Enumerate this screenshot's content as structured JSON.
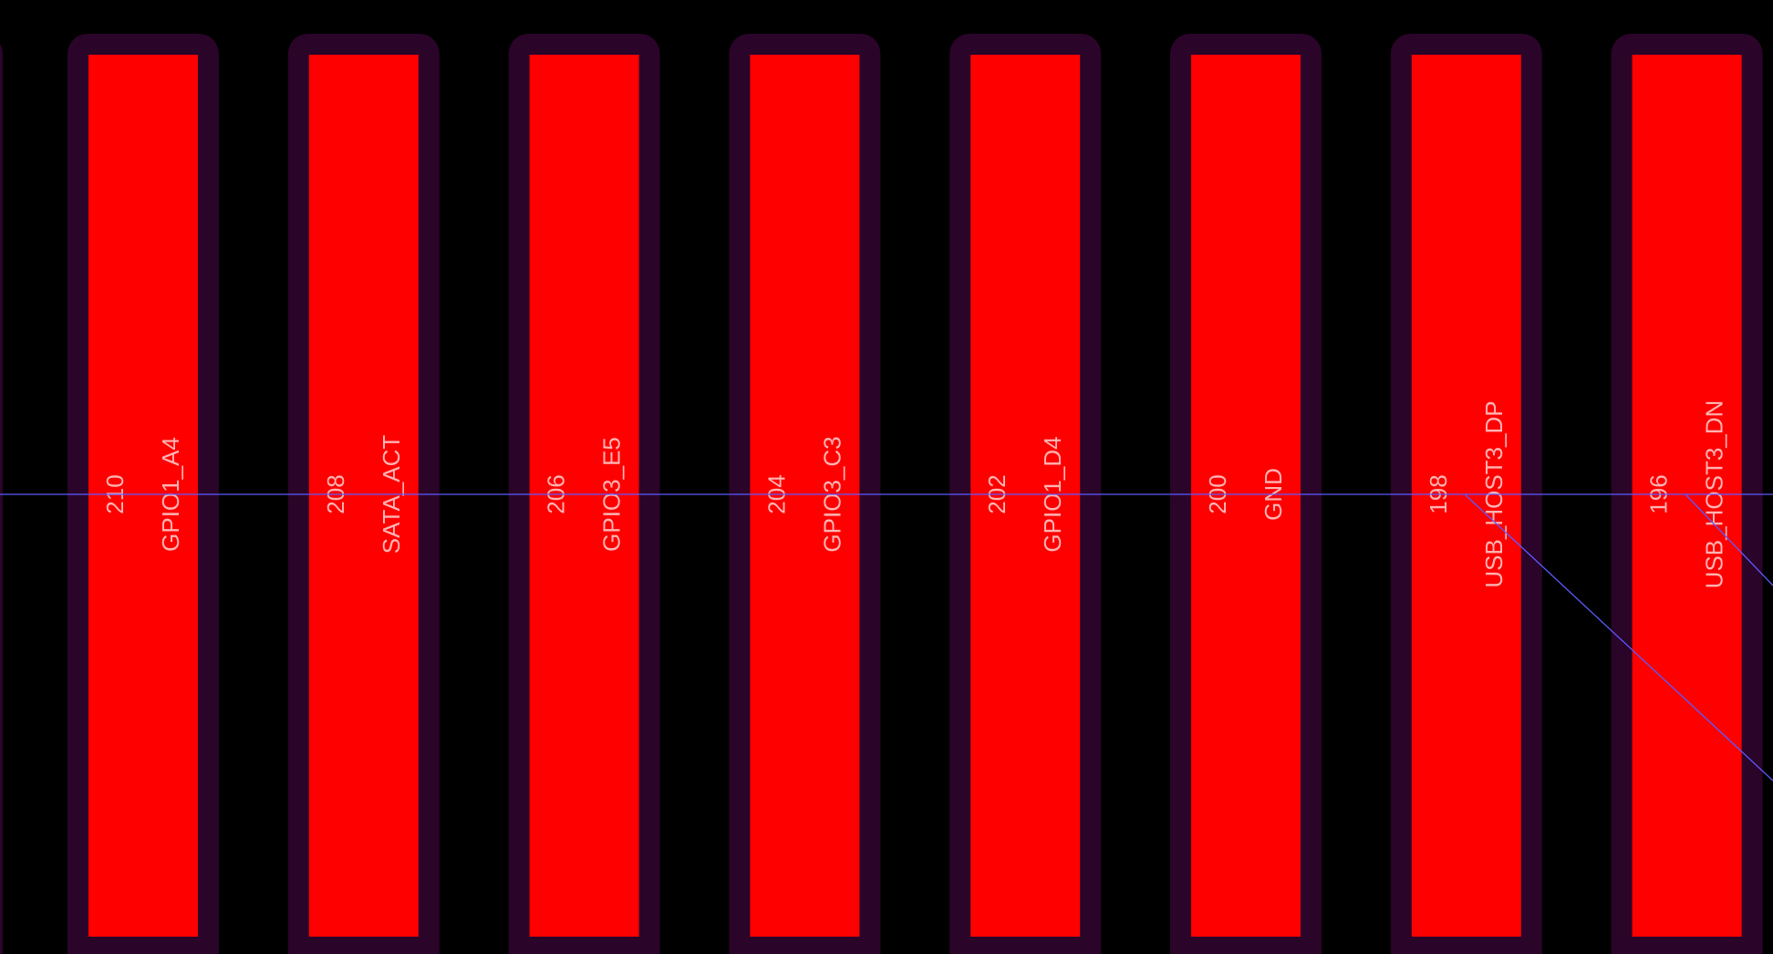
{
  "colors": {
    "background": "#000000",
    "pad_copper": "#ff0000",
    "pad_clearance": "#2a0429",
    "label_text": "#ffb4b4",
    "ratsnest": "#5a5aff"
  },
  "pads": [
    {
      "number": "210",
      "net": "GPIO1_A4"
    },
    {
      "number": "208",
      "net": "SATA_ACT"
    },
    {
      "number": "206",
      "net": "GPIO3_E5"
    },
    {
      "number": "204",
      "net": "GPIO3_C3"
    },
    {
      "number": "202",
      "net": "GPIO1_D4"
    },
    {
      "number": "200",
      "net": "GND"
    },
    {
      "number": "198",
      "net": "USB_HOST3_DP"
    },
    {
      "number": "196",
      "net": "USB_HOST3_DN"
    }
  ]
}
